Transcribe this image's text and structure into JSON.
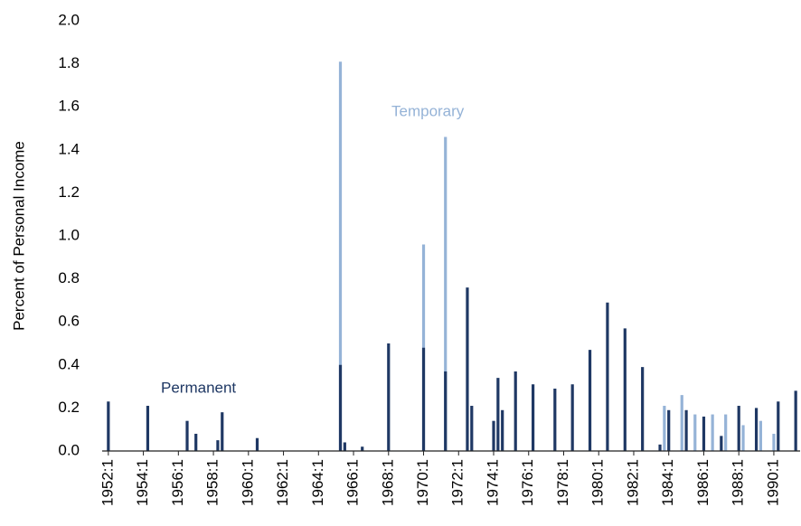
{
  "chart_data": {
    "type": "spike",
    "y_label": "Percent of Personal Income",
    "xlim": [
      1951.75,
      1991.5
    ],
    "xticks": [
      {
        "value": 1952,
        "label": "1952:1"
      },
      {
        "value": 1954,
        "label": "1954:1"
      },
      {
        "value": 1956,
        "label": "1956:1"
      },
      {
        "value": 1958,
        "label": "1958:1"
      },
      {
        "value": 1960,
        "label": "1960:1"
      },
      {
        "value": 1962,
        "label": "1962:1"
      },
      {
        "value": 1964,
        "label": "1964:1"
      },
      {
        "value": 1966,
        "label": "1966:1"
      },
      {
        "value": 1968,
        "label": "1968:1"
      },
      {
        "value": 1970,
        "label": "1970:1"
      },
      {
        "value": 1972,
        "label": "1972:1"
      },
      {
        "value": 1974,
        "label": "1974:1"
      },
      {
        "value": 1976,
        "label": "1976:1"
      },
      {
        "value": 1978,
        "label": "1978:1"
      },
      {
        "value": 1980,
        "label": "1980:1"
      },
      {
        "value": 1982,
        "label": "1982:1"
      },
      {
        "value": 1984,
        "label": "1984:1"
      },
      {
        "value": 1986,
        "label": "1986:1"
      },
      {
        "value": 1988,
        "label": "1988:1"
      },
      {
        "value": 1990,
        "label": "1990:1"
      }
    ],
    "ylim": [
      0,
      2
    ],
    "yticks": [
      {
        "value": 0,
        "label": "0.0"
      },
      0.2,
      0.4,
      0.6,
      0.8,
      {
        "value": 1,
        "label": "1.0"
      },
      1.2,
      1.4,
      1.6,
      1.8,
      {
        "value": 2,
        "label": "2.0"
      }
    ],
    "series": [
      {
        "name": "Temporary",
        "color": "#95b3d7",
        "x": [
          1965.25,
          1970.0,
          1971.25,
          1983.75,
          1984.75,
          1985.5,
          1986.5,
          1987.25,
          1988.25,
          1989.25,
          1990.0
        ],
        "values": [
          1.81,
          0.96,
          1.46,
          0.21,
          0.26,
          0.17,
          0.17,
          0.17,
          0.12,
          0.14,
          0.08
        ]
      },
      {
        "name": "Permanent",
        "color": "#1f3864",
        "x": [
          1952.0,
          1954.25,
          1956.5,
          1957.0,
          1958.25,
          1958.5,
          1960.5,
          1965.25,
          1965.5,
          1966.5,
          1968.0,
          1970.0,
          1971.25,
          1972.5,
          1972.75,
          1974.0,
          1974.25,
          1974.5,
          1975.25,
          1976.25,
          1977.5,
          1978.5,
          1979.5,
          1980.5,
          1981.5,
          1982.5,
          1983.5,
          1984.0,
          1985.0,
          1986.0,
          1987.0,
          1988.0,
          1989.0,
          1990.25,
          1991.25
        ],
        "values": [
          0.23,
          0.21,
          0.14,
          0.08,
          0.05,
          0.18,
          0.06,
          0.4,
          0.04,
          0.02,
          0.5,
          0.48,
          0.37,
          0.76,
          0.21,
          0.14,
          0.34,
          0.19,
          0.37,
          0.31,
          0.29,
          0.31,
          0.47,
          0.69,
          0.57,
          0.39,
          0.03,
          0.19,
          0.19,
          0.16,
          0.07,
          0.21,
          0.2,
          0.23,
          0.28
        ]
      }
    ]
  }
}
